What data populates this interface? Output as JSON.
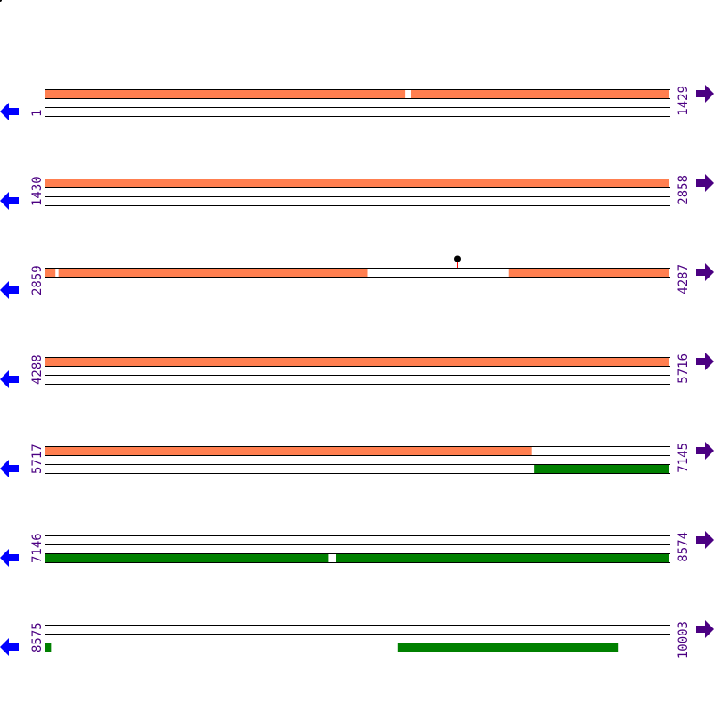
{
  "colors": {
    "top_feature": "#ff7f50",
    "bottom_feature": "#008000",
    "strand_line": "#000000",
    "left_arrow": "#0000ff",
    "right_arrow": "#4b0082",
    "number_text": "#4b0082",
    "marker_stem": "#ff0000",
    "marker_head": "#000000"
  },
  "icons": {
    "left": "arrow-left-icon",
    "right": "arrow-right-icon"
  },
  "rows": [
    {
      "start": "1",
      "end": "1429",
      "top": [
        [
          1,
          825
        ],
        [
          838,
          1429
        ]
      ],
      "bottom": []
    },
    {
      "start": "1430",
      "end": "2858",
      "top": [
        [
          1430,
          2858
        ]
      ],
      "bottom": []
    },
    {
      "start": "2859",
      "end": "4287",
      "top": [
        [
          2859,
          2883
        ],
        [
          2891,
          3596
        ],
        [
          3920,
          4287
        ]
      ],
      "bottom": [],
      "markers": [
        3802
      ]
    },
    {
      "start": "4288",
      "end": "5716",
      "top": [
        [
          4288,
          5716
        ]
      ],
      "bottom": []
    },
    {
      "start": "5717",
      "end": "7145",
      "top": [
        [
          5717,
          6830
        ]
      ],
      "bottom": [
        [
          6836,
          7145
        ]
      ]
    },
    {
      "start": "7146",
      "end": "8574",
      "top": [],
      "bottom": [
        [
          7146,
          7795
        ],
        [
          7813,
          8574
        ]
      ]
    },
    {
      "start": "8575",
      "end": "10003",
      "top": [],
      "bottom": [
        [
          8575,
          8589
        ],
        [
          9383,
          9885
        ]
      ]
    }
  ]
}
